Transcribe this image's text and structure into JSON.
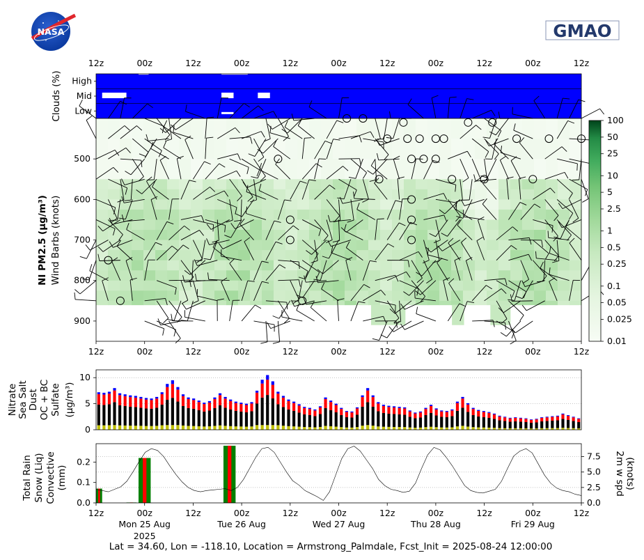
{
  "logos": {
    "left_text": "NASA",
    "right_text": "GMAO"
  },
  "time_axis": {
    "top_ticks": [
      "12z",
      "00z",
      "12z",
      "00z",
      "12z",
      "00z",
      "12z",
      "00z",
      "12z",
      "00z",
      "12z"
    ],
    "bottom_day_labels": [
      "Mon 25 Aug",
      "Tue 26 Aug",
      "Wed 27 Aug",
      "Thu 28 Aug",
      "Fri 29 Aug"
    ],
    "year_label": "2025"
  },
  "footer": "Lat = 34.60, Lon = -118.10, Location = Armstrong_Palmdale, Fcst_Init = 2025-08-24 12:00:00",
  "colors": {
    "cloud_blue": "#0000ff",
    "green_dark": "#00441b",
    "nitrate": "#008000",
    "sea_salt": "#0000ff",
    "dust": "#ff0000",
    "oc_bc": "#000000",
    "sulfate": "#bfbf00"
  },
  "chart_data": [
    {
      "type": "heatmap",
      "name_panel": "clouds",
      "ylabel": "Clouds (%)",
      "rows": [
        "High",
        "Mid",
        "Low"
      ],
      "x_hours_range": [
        0,
        120
      ],
      "note_white_gaps": [
        {
          "row": "High",
          "x_hours": [
            10.5,
            13
          ]
        },
        {
          "row": "High",
          "x_hours": [
            31,
            37.5
          ]
        },
        {
          "row": "Mid",
          "x_hours": [
            1.5,
            7.5
          ]
        },
        {
          "row": "Mid",
          "x_hours": [
            31,
            34
          ]
        },
        {
          "row": "Mid",
          "x_hours": [
            40,
            43
          ]
        },
        {
          "row": "Low",
          "x_hours": [
            31,
            34
          ]
        }
      ]
    },
    {
      "type": "heatmap",
      "name_panel": "pm25_profile",
      "ylabel": "NI PM2.5 (μg/m³)",
      "ylabel2": "Wind Barbs (knots)",
      "yticks": [
        500,
        600,
        700,
        800,
        900
      ],
      "ylim": [
        950,
        400
      ],
      "colorbar": {
        "scale": "log",
        "ticks": [
          "0.01",
          "0.025",
          "0.05",
          "0.1",
          "0.25",
          "0.5",
          "1",
          "2.5",
          "5",
          "10",
          "25",
          "50",
          "100"
        ],
        "range": [
          0.01,
          100
        ]
      },
      "bands": [
        {
          "p_range": [
            400,
            550
          ],
          "level": 0.015
        },
        {
          "p_range": [
            550,
            860
          ],
          "level": 0.5
        },
        {
          "p_range": [
            860,
            910
          ],
          "level": 0.3
        }
      ],
      "calm_markers_hours_pressure": [
        [
          62,
          400
        ],
        [
          66,
          400
        ],
        [
          76,
          410
        ],
        [
          92,
          410
        ],
        [
          98,
          410
        ],
        [
          72,
          450
        ],
        [
          77,
          450
        ],
        [
          80,
          450
        ],
        [
          84,
          450
        ],
        [
          86,
          450
        ],
        [
          84,
          500
        ],
        [
          104,
          450
        ],
        [
          112,
          450
        ],
        [
          120,
          450
        ],
        [
          45,
          500
        ],
        [
          78,
          500
        ],
        [
          81,
          500
        ],
        [
          70,
          550
        ],
        [
          88,
          550
        ],
        [
          96,
          550
        ],
        [
          108,
          550
        ],
        [
          78,
          600
        ],
        [
          48,
          650
        ],
        [
          78,
          650
        ],
        [
          48,
          700
        ],
        [
          78,
          700
        ],
        [
          3,
          750
        ],
        [
          6,
          850
        ],
        [
          51,
          850
        ]
      ]
    },
    {
      "type": "bar",
      "name_panel": "aerosol_composition",
      "ylabel_stack": [
        "Nitrate",
        "Sea Salt",
        "Dust",
        "OC + BC",
        "Sulfate"
      ],
      "unit_label": "(μg/m³)",
      "yticks": [
        0,
        5,
        10
      ],
      "ylim": [
        0,
        11.5
      ],
      "x_hours_step": 3,
      "total": [
        7.2,
        7.1,
        7.3,
        8.0,
        7.0,
        6.8,
        6.6,
        6.5,
        6.3,
        6.1,
        6.0,
        6.3,
        7.2,
        8.8,
        9.5,
        8.2,
        6.8,
        6.2,
        6.0,
        5.6,
        5.2,
        5.5,
        6.2,
        7.0,
        6.3,
        5.8,
        5.4,
        5.2,
        5.0,
        5.3,
        7.5,
        9.6,
        10.5,
        9.3,
        7.3,
        6.5,
        5.8,
        5.4,
        4.9,
        4.4,
        4.2,
        3.9,
        4.5,
        6.2,
        5.6,
        5.0,
        4.2,
        3.6,
        3.5,
        4.3,
        6.6,
        8.0,
        6.6,
        5.3,
        4.8,
        4.6,
        4.5,
        4.4,
        4.3,
        3.7,
        3.3,
        3.5,
        4.2,
        4.8,
        4.1,
        3.7,
        3.6,
        3.9,
        5.4,
        6.3,
        5.1,
        4.2,
        3.8,
        3.6,
        3.4,
        3.1,
        2.7,
        2.5,
        2.3,
        2.4,
        2.3,
        2.2,
        2.0,
        2.1,
        2.4,
        2.5,
        2.6,
        2.7,
        3.1,
        2.8,
        2.5,
        2.2
      ]
    },
    {
      "type": "bar",
      "name_panel": "precip_wind",
      "ylabel_stack": [
        "Total Rain",
        "Snow (Liq)",
        "Convective",
        "(mm)"
      ],
      "yticks": [
        "0.0",
        "0.1",
        "0.2"
      ],
      "ylim": [
        0,
        0.29
      ],
      "ylabel_right": [
        "2m w spd",
        "(knots)"
      ],
      "yticks_right": [
        "0.0",
        "2.5",
        "5.0",
        "7.5"
      ],
      "ylim_right": [
        0,
        9.6
      ],
      "rain_bars": [
        {
          "x_hours": [
            0,
            1.5
          ],
          "total": 0.07,
          "convective": 0.07
        },
        {
          "x_hours": [
            7.5,
            10
          ],
          "total": 0.002,
          "convective": 0.002
        },
        {
          "x_hours": [
            10.5,
            13.5
          ],
          "total": 0.22,
          "convective": 0.22
        },
        {
          "x_hours": [
            31.5,
            34.5
          ],
          "total": 0.28,
          "convective": 0.28
        }
      ],
      "wind_speed_knots": [
        2.2,
        2.0,
        1.8,
        2.2,
        2.6,
        3.5,
        5.0,
        6.7,
        8.2,
        8.8,
        8.5,
        7.5,
        6.0,
        4.6,
        3.4,
        2.5,
        2.0,
        1.8,
        2.0,
        2.1,
        2.2,
        2.3,
        2.0,
        2.5,
        3.8,
        5.6,
        7.4,
        8.8,
        9.0,
        8.2,
        6.6,
        5.0,
        3.6,
        2.9,
        2.0,
        1.5,
        1.0,
        0.4,
        1.8,
        4.5,
        7.2,
        8.8,
        9.2,
        8.4,
        7.0,
        5.6,
        3.8,
        2.8,
        2.2,
        2.0,
        1.7,
        1.9,
        3.2,
        5.6,
        7.8,
        9.0,
        8.6,
        7.4,
        6.0,
        4.4,
        2.8,
        2.0,
        1.7,
        1.6,
        1.9,
        2.2,
        3.5,
        5.6,
        7.6,
        8.4,
        8.8,
        8.1,
        6.3,
        4.5,
        3.2,
        2.4,
        2.0,
        1.8,
        1.4,
        1.2
      ]
    }
  ]
}
